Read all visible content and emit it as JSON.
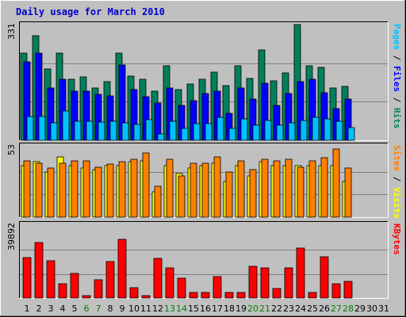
{
  "chart_data": {
    "type": "bar",
    "title": "Daily usage for March 2010",
    "colors": {
      "background": "#c0c0c0",
      "title": "#0000cc",
      "hits": "#00805c",
      "files": "#0000ff",
      "pages": "#00c0ff",
      "visits": "#ffff00",
      "sites": "#ff8000",
      "kbytes": "#ff0000",
      "weekend_label": "#008000"
    },
    "x": [
      "1",
      "2",
      "3",
      "4",
      "5",
      "6",
      "7",
      "8",
      "9",
      "10",
      "11",
      "12",
      "13",
      "14",
      "15",
      "16",
      "17",
      "18",
      "19",
      "20",
      "21",
      "22",
      "23",
      "24",
      "25",
      "26",
      "27",
      "28",
      "29",
      "30",
      "31"
    ],
    "weekend_days": [
      "6",
      "7",
      "13",
      "14",
      "20",
      "21",
      "27",
      "28"
    ],
    "panels": [
      {
        "id": "hits_files_pages",
        "ymax_label": "331",
        "ymax": 331,
        "ylabel_parts": [
          {
            "text": "Pages",
            "color": "#00c0ff"
          },
          {
            "text": " / ",
            "color": "#000000"
          },
          {
            "text": "Files",
            "color": "#0000ff"
          },
          {
            "text": " / ",
            "color": "#000000"
          },
          {
            "text": "Hits",
            "color": "#00805c"
          }
        ],
        "series": [
          {
            "name": "Hits",
            "color": "#00805c",
            "values": [
              250,
              299,
              204,
              250,
              174,
              182,
              150,
              168,
              250,
              183,
              174,
              141,
              213,
              144,
              160,
              174,
              194,
              157,
              213,
              177,
              258,
              170,
              193,
              331,
              213,
              209,
              150,
              154,
              0,
              0,
              0
            ]
          },
          {
            "name": "Files",
            "color": "#0000ff",
            "values": [
              224,
              249,
              149,
              174,
              140,
              141,
              131,
              126,
              216,
              145,
              124,
              106,
              150,
              100,
              113,
              134,
              141,
              78,
              149,
              119,
              164,
              100,
              134,
              167,
              174,
              137,
              90,
              118,
              0,
              0,
              0
            ]
          },
          {
            "name": "Pages",
            "color": "#00c0ff",
            "values": [
              67,
              69,
              49,
              84,
              54,
              55,
              53,
              55,
              49,
              45,
              60,
              19,
              54,
              33,
              48,
              48,
              65,
              34,
              61,
              43,
              57,
              44,
              49,
              56,
              65,
              61,
              55,
              36,
              0,
              0,
              0
            ]
          }
        ]
      },
      {
        "id": "visits_sites",
        "ymax_label": "53",
        "ymax": 53,
        "ylabel_parts": [
          {
            "text": "Sites",
            "color": "#ff8000"
          },
          {
            "text": " / ",
            "color": "#000000"
          },
          {
            "text": "Visits",
            "color": "#ffff00"
          }
        ],
        "series": [
          {
            "name": "Visits",
            "color": "#ffff00",
            "values": [
              40,
              43,
              35,
              47,
              40,
              38,
              37,
              40,
              40,
              43,
              44,
              20,
              40,
              34,
              38,
              40,
              42,
              28,
              40,
              32,
              43,
              40,
              40,
              40,
              40,
              40,
              40,
              28,
              0,
              0,
              0
            ]
          },
          {
            "name": "Sites",
            "color": "#ff8000",
            "values": [
              44,
              42,
              38,
              42,
              44,
              44,
              39,
              41,
              43,
              45,
              50,
              24,
              45,
              32,
              42,
              42,
              47,
              35,
              44,
              37,
              45,
              44,
              45,
              39,
              44,
              46,
              53,
              38,
              0,
              0,
              0
            ]
          }
        ]
      },
      {
        "id": "kbytes",
        "ymax_label": "39892",
        "ymax": 39892,
        "ylabel_parts": [
          {
            "text": "KBytes",
            "color": "#ff0000"
          }
        ],
        "series": [
          {
            "name": "KBytes",
            "color": "#ff0000",
            "values": [
              22500,
              30700,
              20700,
              8100,
              13700,
              1300,
              10300,
              20200,
              32600,
              5800,
              1300,
              21900,
              16800,
              10800,
              3200,
              3200,
              11800,
              3200,
              3000,
              17700,
              16800,
              5100,
              16700,
              27500,
              3100,
              22800,
              7800,
              9000,
              0,
              0,
              0
            ]
          }
        ]
      }
    ]
  }
}
